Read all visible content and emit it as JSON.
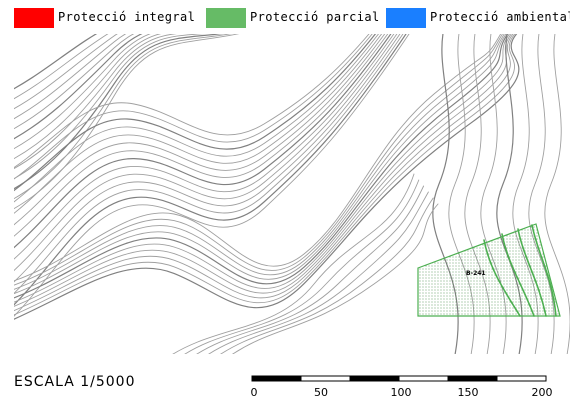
{
  "legend": {
    "items": [
      {
        "label": "Protecció integral",
        "color": "#ff0000"
      },
      {
        "label": "Protecció parcial",
        "color": "#66bb66"
      },
      {
        "label": "Protecció ambiental",
        "color": "#1a7fff"
      }
    ]
  },
  "map": {
    "zone_label": "B-241",
    "zone_color": "#4caf50",
    "contour_color": "#a0a0a0",
    "contour_index_color": "#808080"
  },
  "scale": {
    "text": "ESCALA   1/5000",
    "ticks": [
      "0",
      "50",
      "100",
      "150",
      "200"
    ]
  }
}
